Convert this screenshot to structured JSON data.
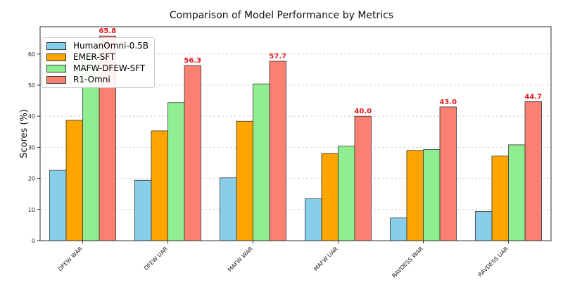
{
  "chart_data": {
    "type": "bar",
    "title": "Comparison of Model Performance by Metrics",
    "xlabel": "",
    "ylabel": "Scores (%)",
    "ylim": [
      0,
      69
    ],
    "yticks": [
      0,
      10,
      20,
      30,
      40,
      50,
      60
    ],
    "grid": "y dashed",
    "legend_position": "top-left",
    "categories": [
      "DFEW WAR",
      "DFEW UAR",
      "MAFW WAR",
      "MAFW UAR",
      "RAVDESS WAR",
      "RAVDESS UAR"
    ],
    "series": [
      {
        "name": "HumanOmni-0.5B",
        "color": "#87ceeb",
        "values": [
          22.6,
          19.4,
          20.2,
          13.5,
          7.3,
          9.4
        ]
      },
      {
        "name": "EMER-SFT",
        "color": "#ffa500",
        "values": [
          38.7,
          35.3,
          38.4,
          28.0,
          29.0,
          27.2
        ]
      },
      {
        "name": "MAFW-DFEW-SFT",
        "color": "#90ee90",
        "values": [
          60.0,
          44.4,
          50.4,
          30.4,
          29.3,
          30.8
        ]
      },
      {
        "name": "R1-Omni",
        "color": "#fa8072",
        "values": [
          65.8,
          56.3,
          57.7,
          40.0,
          43.0,
          44.7
        ]
      }
    ],
    "data_labels": [
      "65.8",
      "56.3",
      "57.7",
      "40.0",
      "43.0",
      "44.7"
    ],
    "data_label_color": "#e41a1c"
  }
}
